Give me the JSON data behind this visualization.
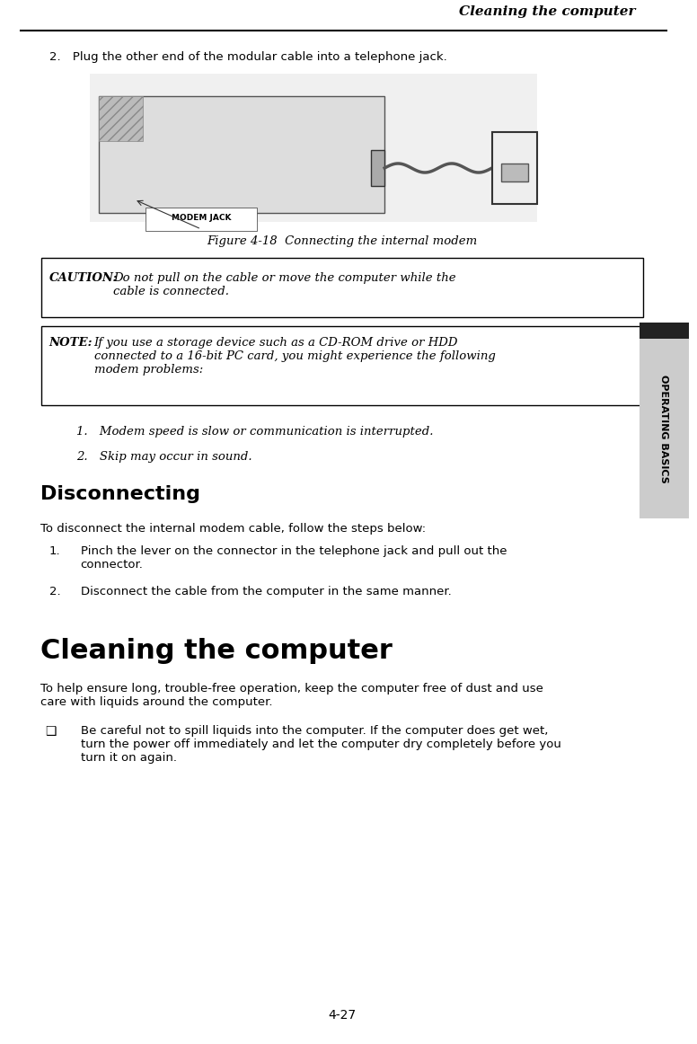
{
  "page_width": 7.76,
  "page_height": 11.62,
  "bg_color": "#ffffff",
  "header_title": "Cleaning the computer",
  "header_title_style": "bold italic",
  "header_line_color": "#000000",
  "step2_text": "2. Plug the other end of the modular cable into a telephone jack.",
  "figure_caption": "Figure 4-18  Connecting the internal modem",
  "caution_label": "CAUTION:",
  "caution_text": " Do not pull on the cable or move the computer while the\ncable is connected.",
  "note_label": "NOTE:",
  "note_text": " If you use a storage device such as a CD-ROM drive or HDD\nconnected to a 16-bit PC card, you might experience the following\nmodem problems:",
  "note_items": [
    "1. Modem speed is slow or communication is interrupted.",
    "2. Skip may occur in sound."
  ],
  "disconnecting_heading": "Disconnecting",
  "disconnecting_intro": "To disconnect the internal modem cable, follow the steps below:",
  "disconnecting_steps": [
    "Pinch the lever on the connector in the telephone jack and pull out the\nconnector.",
    "Disconnect the cable from the computer in the same manner."
  ],
  "cleaning_heading": "Cleaning the computer",
  "cleaning_intro": "To help ensure long, trouble-free operation, keep the computer free of dust and use\ncare with liquids around the computer.",
  "cleaning_bullet": "Be careful not to spill liquids into the computer. If the computer does get wet,\nturn the power off immediately and let the computer dry completely before you\nturn it on again.",
  "sidebar_text": "OPERATING BASICS",
  "sidebar_bg": "#cccccc",
  "sidebar_dark": "#222222",
  "page_number": "4-27",
  "modem_jack_label": "MODEM JACK",
  "image_box_color": "#ffffff",
  "image_border_color": "#000000"
}
